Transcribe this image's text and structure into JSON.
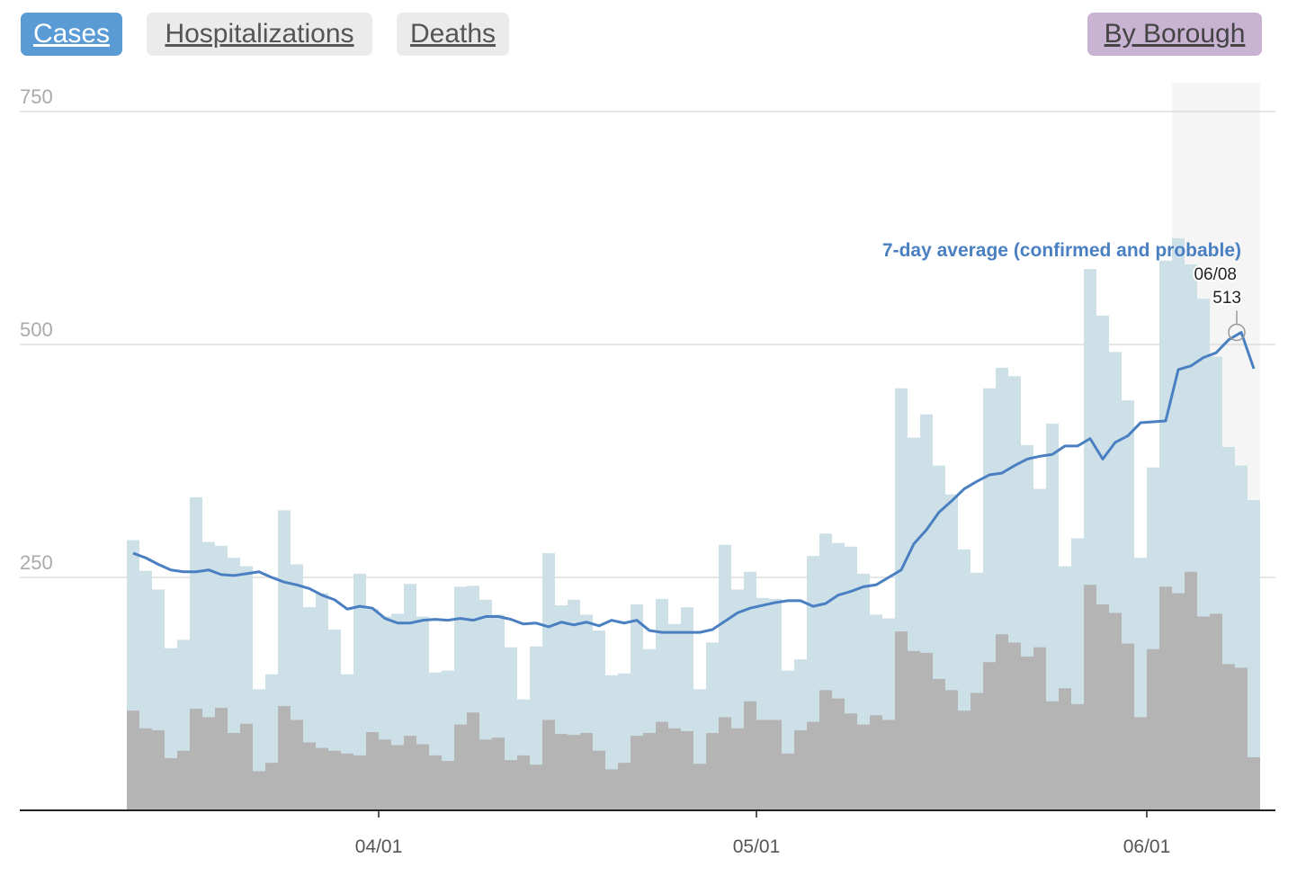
{
  "tabs": [
    "Cases",
    "Hospitalizations",
    "Deaths"
  ],
  "by_borough": "By Borough",
  "chart_data": {
    "type": "bar",
    "x": [
      "03/12",
      "03/13",
      "03/14",
      "03/15",
      "03/16",
      "03/17",
      "03/18",
      "03/19",
      "03/20",
      "03/21",
      "03/22",
      "03/23",
      "03/24",
      "03/25",
      "03/26",
      "03/27",
      "03/28",
      "03/29",
      "03/30",
      "03/31",
      "04/01",
      "04/02",
      "04/03",
      "04/04",
      "04/05",
      "04/06",
      "04/07",
      "04/08",
      "04/09",
      "04/10",
      "04/11",
      "04/12",
      "04/13",
      "04/14",
      "04/15",
      "04/16",
      "04/17",
      "04/18",
      "04/19",
      "04/20",
      "04/21",
      "04/22",
      "04/23",
      "04/24",
      "04/25",
      "04/26",
      "04/27",
      "04/28",
      "04/29",
      "04/30",
      "05/01",
      "05/02",
      "05/03",
      "05/04",
      "05/05",
      "05/06",
      "05/07",
      "05/08",
      "05/09",
      "05/10",
      "05/11",
      "05/12",
      "05/13",
      "05/14",
      "05/15",
      "05/16",
      "05/17",
      "05/18",
      "05/19",
      "05/20",
      "05/21",
      "05/22",
      "05/23",
      "05/24",
      "05/25",
      "05/26",
      "05/27",
      "05/28",
      "05/29",
      "05/30",
      "05/31",
      "06/01",
      "06/02",
      "06/03",
      "06/04",
      "06/05",
      "06/06",
      "06/07",
      "06/08",
      "06/09"
    ],
    "series": [
      {
        "color": "#cde0e8",
        "values": [
          290,
          257,
          237,
          174,
          183,
          336,
          288,
          284,
          271,
          262,
          130,
          146,
          322,
          264,
          218,
          233,
          194,
          146,
          254,
          216,
          208,
          211,
          243,
          208,
          148,
          150,
          240,
          241,
          226,
          210,
          175,
          119,
          176,
          276,
          220,
          226,
          210,
          193,
          145,
          147,
          221,
          173,
          227,
          200,
          218,
          130,
          180,
          285,
          237,
          256,
          228,
          227,
          150,
          162,
          273,
          297,
          287,
          283,
          254,
          210,
          206,
          453,
          400,
          425,
          370,
          339,
          280,
          255,
          453,
          475,
          466,
          392,
          345,
          415,
          262,
          292,
          581,
          531,
          492,
          440,
          271,
          368,
          590,
          614,
          586,
          549,
          487,
          390,
          370,
          333
        ]
      },
      {
        "color": "#b4b4b4",
        "values": [
          107,
          88,
          86,
          56,
          64,
          109,
          100,
          110,
          83,
          93,
          42,
          51,
          112,
          97,
          73,
          67,
          64,
          61,
          59,
          84,
          76,
          70,
          80,
          71,
          59,
          53,
          92,
          105,
          76,
          78,
          54,
          59,
          49,
          97,
          82,
          81,
          83,
          64,
          44,
          51,
          80,
          83,
          95,
          88,
          85,
          50,
          83,
          100,
          88,
          117,
          97,
          97,
          61,
          86,
          95,
          129,
          120,
          104,
          92,
          102,
          97,
          192,
          171,
          169,
          141,
          129,
          107,
          126,
          159,
          189,
          180,
          165,
          175,
          117,
          131,
          114,
          242,
          221,
          212,
          179,
          100,
          173,
          240,
          233,
          256,
          208,
          211,
          157,
          153,
          57
        ]
      },
      {
        "type": "line",
        "name": "7-day average (confirmed and probable)",
        "color": "#4a7fc1",
        "values": [
          276,
          271,
          264,
          258,
          256,
          256,
          258,
          253,
          252,
          254,
          256,
          250,
          245,
          242,
          238,
          231,
          226,
          216,
          219,
          217,
          206,
          201,
          201,
          204,
          205,
          204,
          206,
          204,
          208,
          208,
          205,
          200,
          201,
          197,
          202,
          199,
          202,
          198,
          204,
          201,
          204,
          193,
          191,
          191,
          191,
          191,
          194,
          203,
          212,
          217,
          220,
          223,
          225,
          225,
          219,
          222,
          231,
          235,
          240,
          242,
          250,
          258,
          286,
          301,
          320,
          332,
          345,
          353,
          360,
          362,
          370,
          377,
          380,
          382,
          391,
          391,
          399,
          377,
          395,
          402,
          416,
          417,
          418,
          473,
          477,
          486,
          491,
          505,
          513,
          474
        ]
      }
    ],
    "annotation": {
      "x": "06/08",
      "y": 513
    },
    "shade_from": "06/03",
    "ylim": [
      0,
      750
    ],
    "yticks": [
      250,
      500,
      750
    ],
    "xticks": [
      "04/01",
      "05/01",
      "06/01"
    ],
    "grid": true
  }
}
